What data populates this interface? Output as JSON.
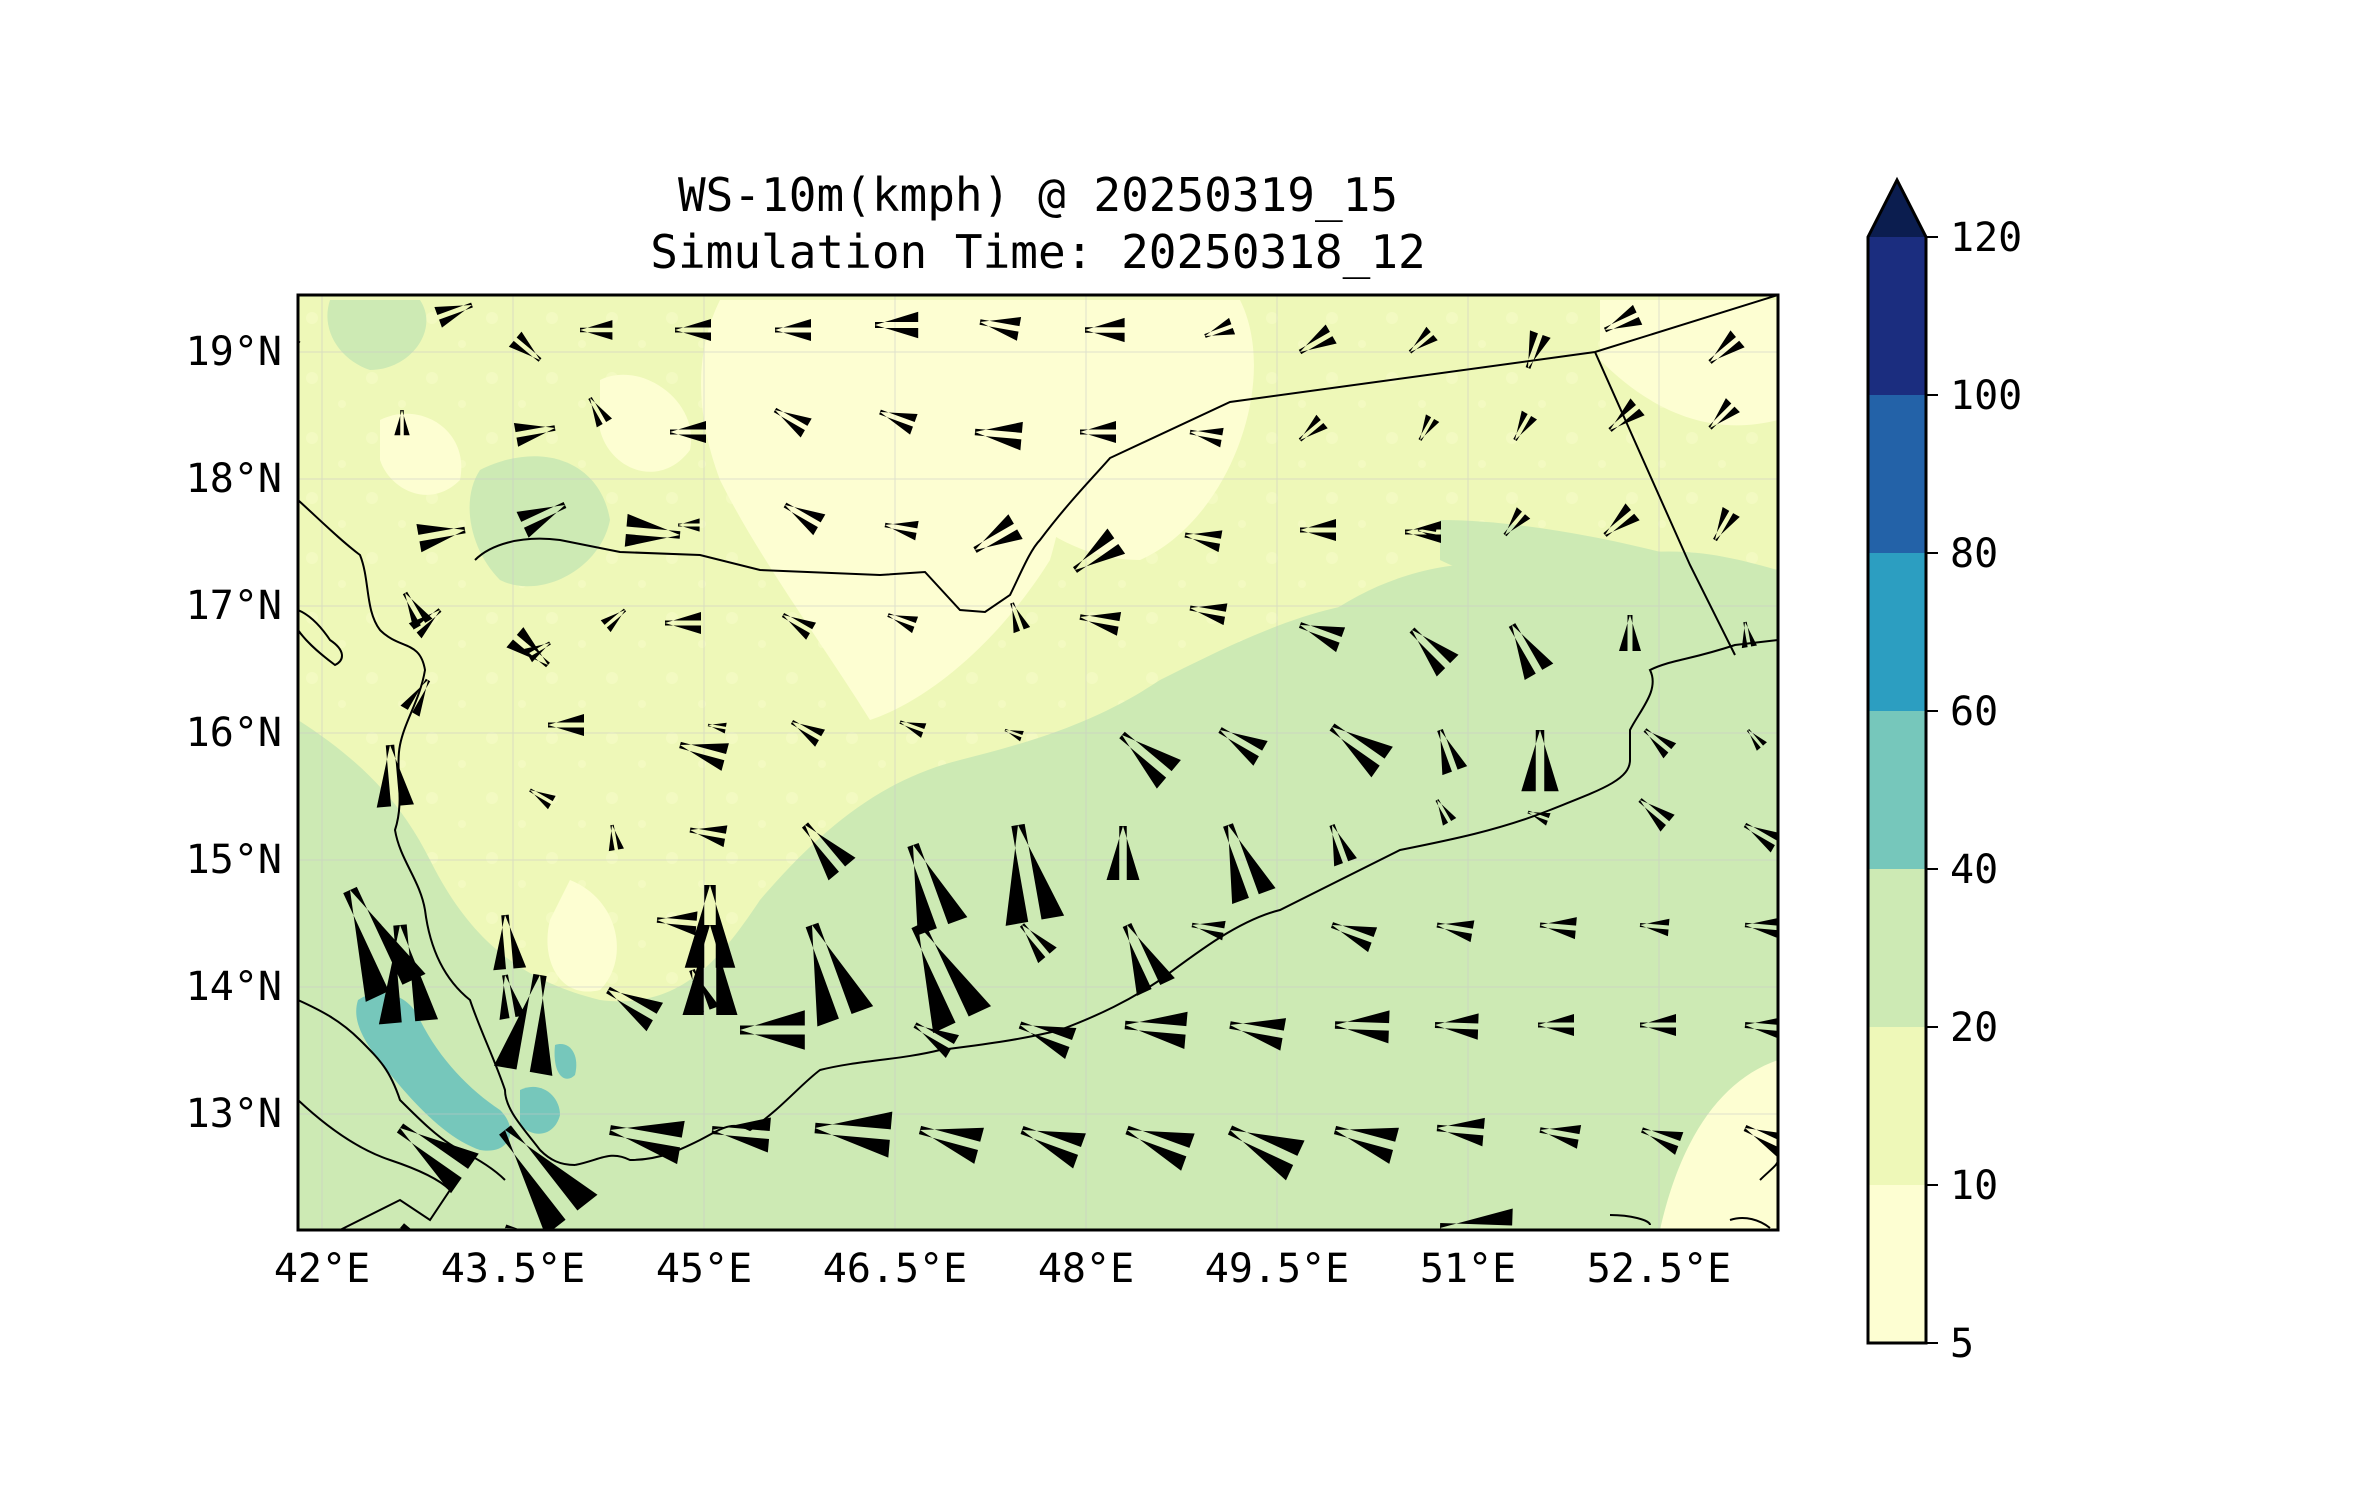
{
  "title": {
    "line1": "WS-10m(kmph) @ 20250319_15",
    "line2": "Simulation Time: 20250318_12"
  },
  "map": {
    "lon_ticks": [
      "42°E",
      "43.5°E",
      "45°E",
      "46.5°E",
      "48°E",
      "49.5°E",
      "51°E",
      "52.5°E"
    ],
    "lat_ticks": [
      "19°N",
      "18°N",
      "17°N",
      "16°N",
      "15°N",
      "14°N",
      "13°N"
    ],
    "lon_range": [
      41.8,
      53.4
    ],
    "lat_range": [
      12.1,
      19.45
    ],
    "grid": true
  },
  "colorbar": {
    "ticks": [
      "5",
      "10",
      "20",
      "40",
      "60",
      "80",
      "100",
      "120"
    ],
    "levels": [
      5,
      10,
      20,
      40,
      60,
      80,
      100,
      120
    ],
    "colors": [
      "#fdfed2",
      "#eef8b8",
      "#cdeab4",
      "#76c7bb",
      "#2c9ec1",
      "#2362a8",
      "#1b2d7f"
    ],
    "extend_color": "#0b1d4f",
    "extend": "max"
  },
  "colors": {
    "land_light": "#eef8b8",
    "land_pale": "#fdfed2",
    "wind_20_40": "#cdeab4",
    "wind_40_60": "#76c7bb",
    "arrow": "#000000",
    "border": "#000000"
  }
}
